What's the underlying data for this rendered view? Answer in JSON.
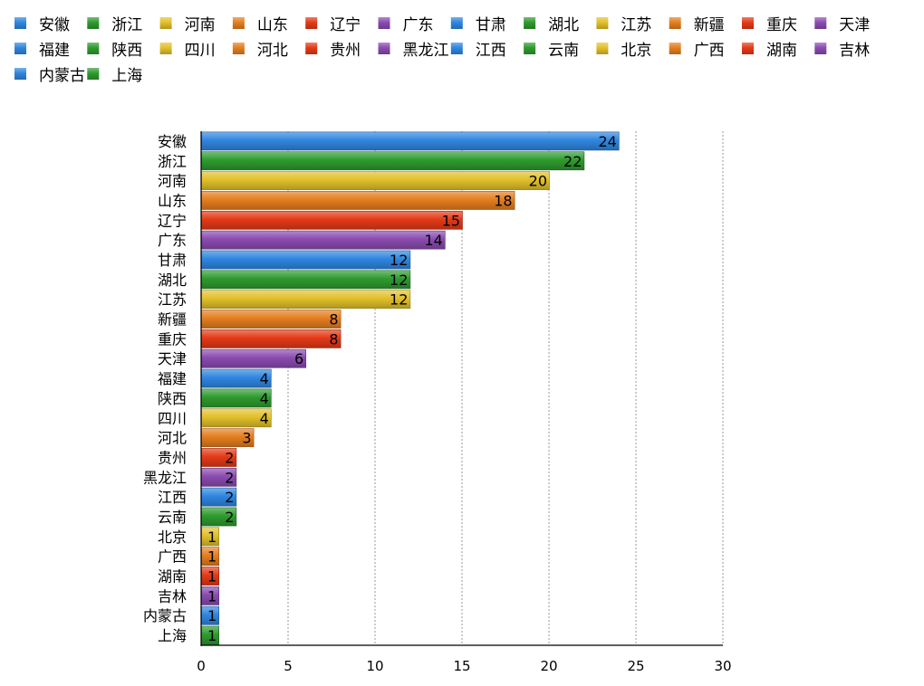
{
  "chart_data": {
    "type": "bar",
    "orientation": "horizontal",
    "title": "",
    "xlabel": "",
    "ylabel": "",
    "xlim": [
      0,
      30
    ],
    "x_ticks": [
      0,
      5,
      10,
      15,
      20,
      25,
      30
    ],
    "grid": "vertical dashed",
    "legend_placement": "top",
    "palette": [
      "#2f86e0",
      "#2e9b2e",
      "#e2c02a",
      "#e57e1f",
      "#e43a17",
      "#8b4bb0"
    ],
    "categories": [
      "安徽",
      "浙江",
      "河南",
      "山东",
      "辽宁",
      "广东",
      "甘肃",
      "湖北",
      "江苏",
      "新疆",
      "重庆",
      "天津",
      "福建",
      "陕西",
      "四川",
      "河北",
      "贵州",
      "黑龙江",
      "江西",
      "云南",
      "北京",
      "广西",
      "湖南",
      "吉林",
      "内蒙古",
      "上海"
    ],
    "values": [
      24,
      22,
      20,
      18,
      15,
      14,
      12,
      12,
      12,
      8,
      8,
      6,
      4,
      4,
      4,
      3,
      2,
      2,
      2,
      2,
      1,
      1,
      1,
      1,
      1,
      1
    ]
  }
}
